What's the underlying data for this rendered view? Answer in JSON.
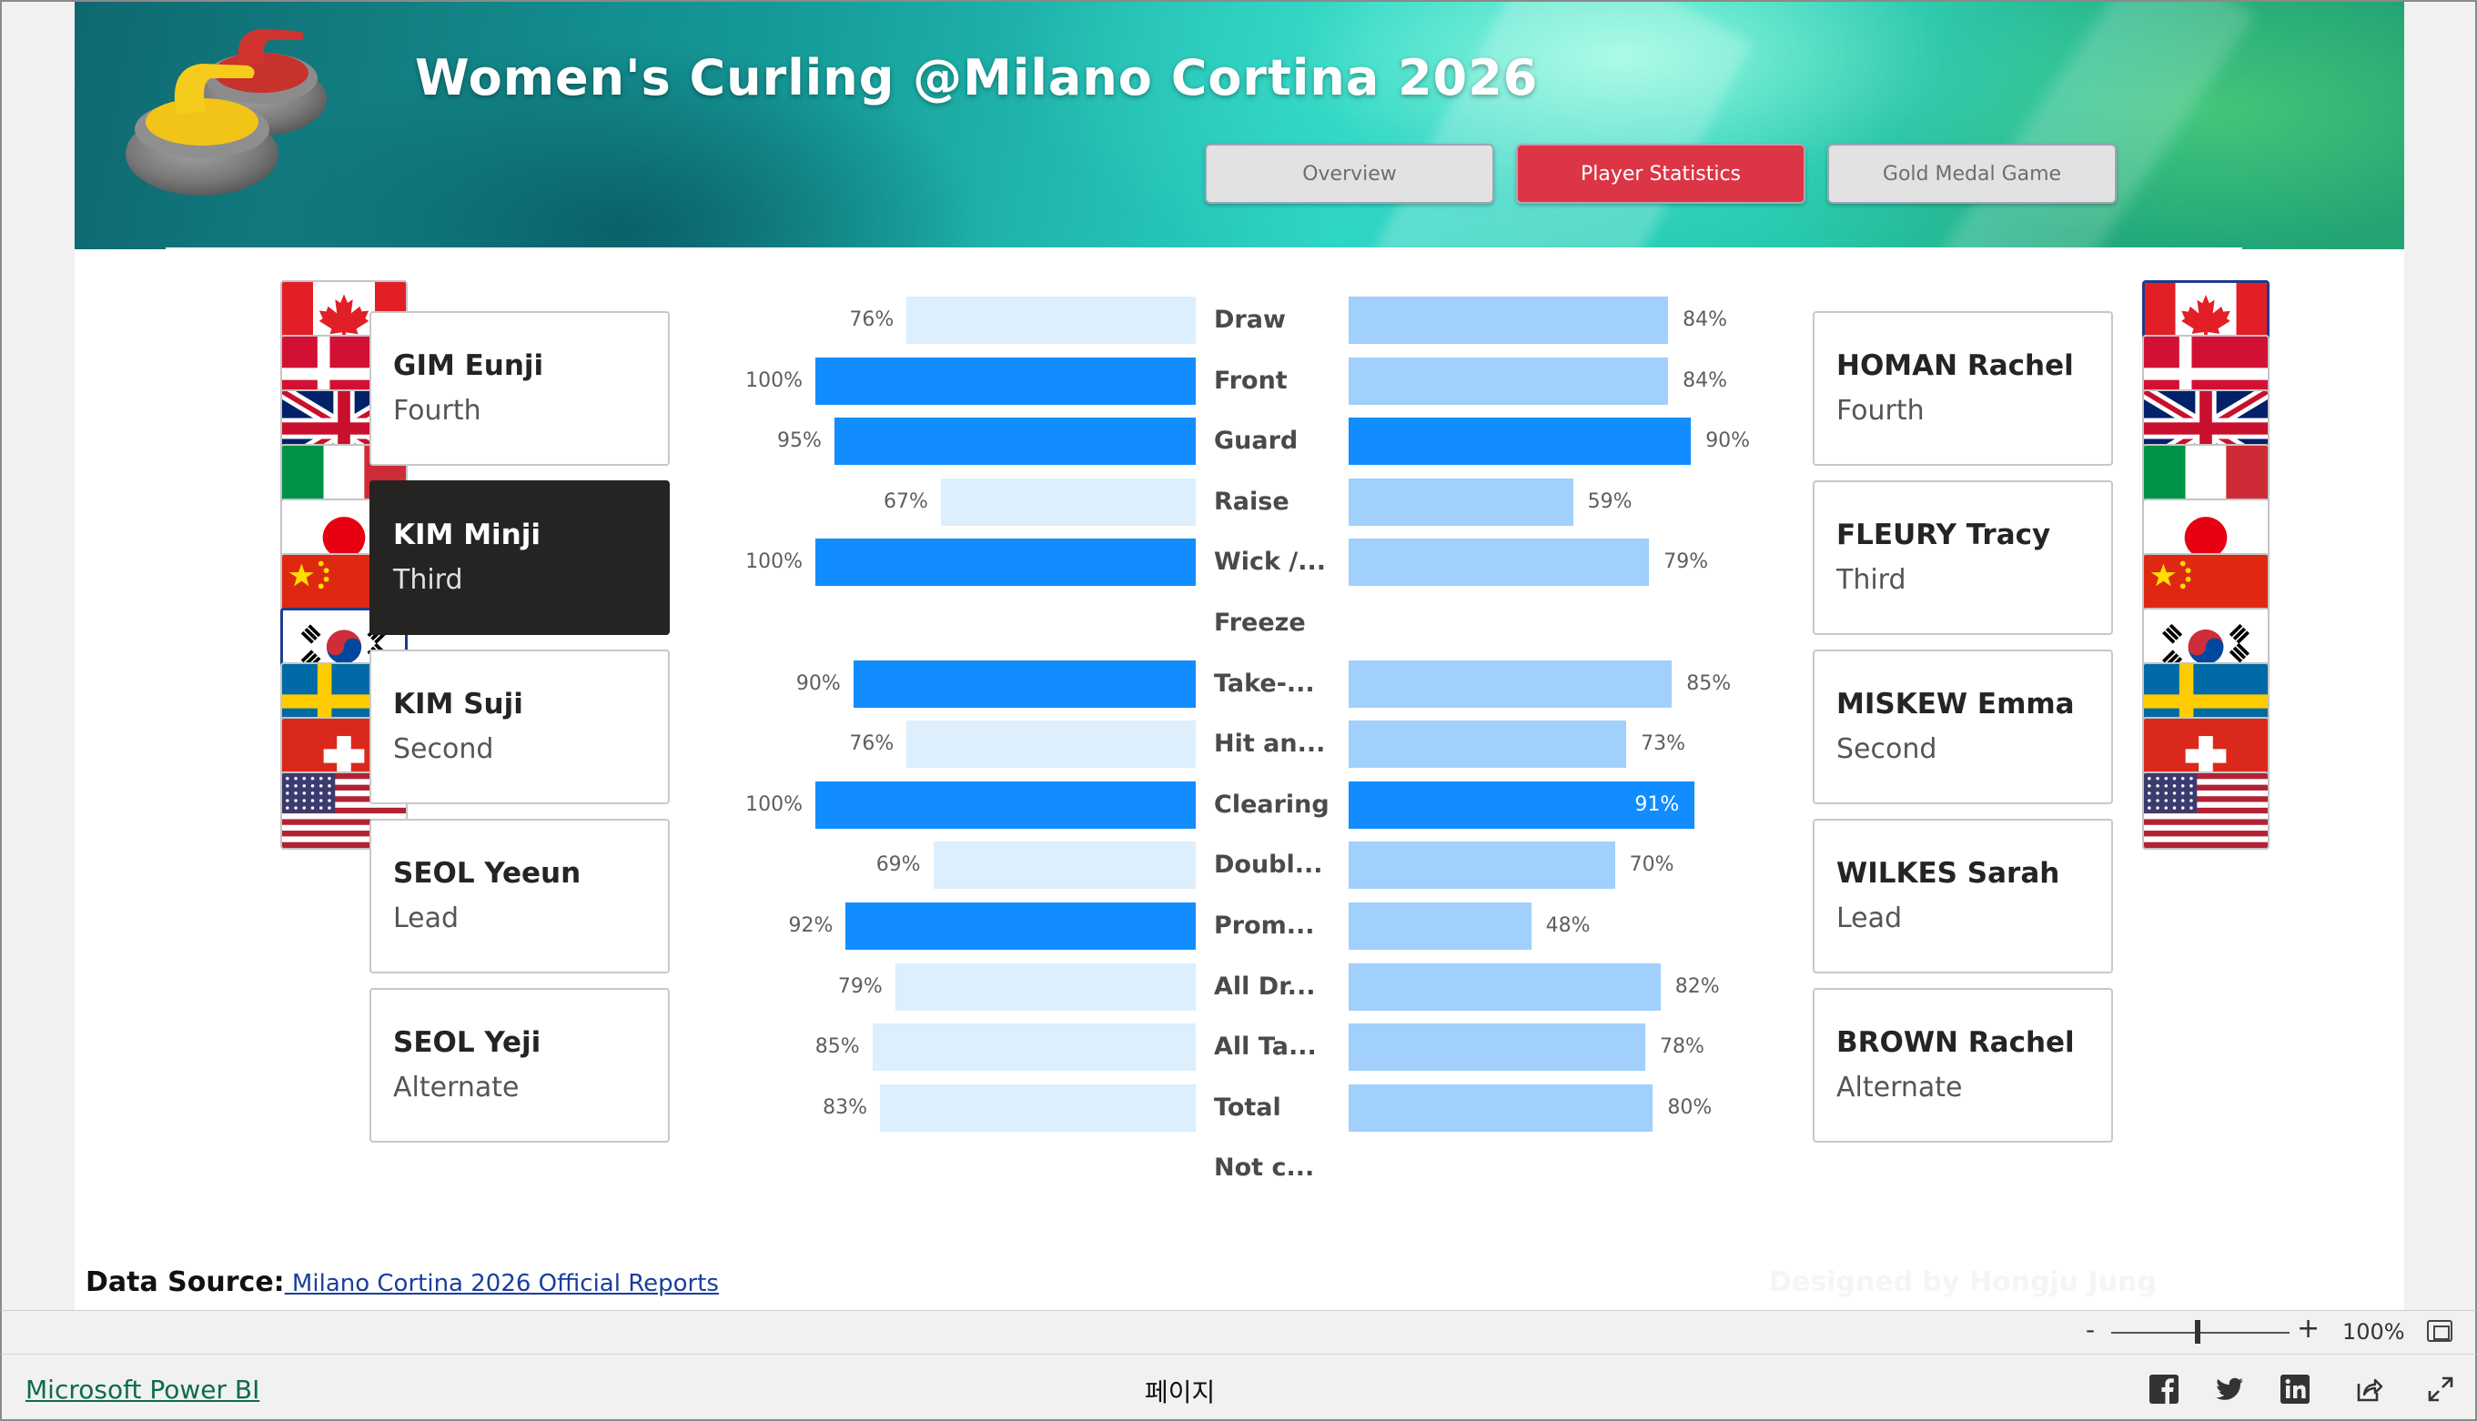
{
  "report": {
    "title": "Women's Curling @Milano Cortina 2026",
    "nav": [
      {
        "label": "Overview",
        "active": false
      },
      {
        "label": "Player Statistics",
        "active": true
      },
      {
        "label": "Gold Medal Game",
        "active": false
      }
    ],
    "data_source_label": "Data Source:",
    "data_source_link": " Milano Cortina 2026 Official Reports",
    "designed_by": "Designed by Hongju Jung"
  },
  "flags": {
    "countries": [
      "canada",
      "denmark",
      "great-britain",
      "italy",
      "japan",
      "china",
      "korea",
      "sweden",
      "switzerland",
      "usa"
    ],
    "left_selected": "korea",
    "right_selected": "canada"
  },
  "left_players": [
    {
      "name": "GIM Eunji",
      "role": "Fourth",
      "selected": false
    },
    {
      "name": "KIM Minji",
      "role": "Third",
      "selected": true
    },
    {
      "name": "KIM Suji",
      "role": "Second",
      "selected": false
    },
    {
      "name": "SEOL Yeeun",
      "role": "Lead",
      "selected": false
    },
    {
      "name": "SEOL Yeji",
      "role": "Alternate",
      "selected": false
    }
  ],
  "right_players": [
    {
      "name": "HOMAN Rachel",
      "role": "Fourth"
    },
    {
      "name": "FLEURY Tracy",
      "role": "Third"
    },
    {
      "name": "MISKEW Emma",
      "role": "Second"
    },
    {
      "name": "WILKES Sarah",
      "role": "Lead"
    },
    {
      "name": "BROWN Rachel",
      "role": "Alternate"
    }
  ],
  "chart_data": {
    "type": "bar",
    "orientation": "horizontal-diverging",
    "categories": [
      "Draw",
      "Front",
      "Guard",
      "Raise",
      "Wick /...",
      "Freeze",
      "Take-...",
      "Hit an...",
      "Clearing",
      "Doubl...",
      "Prom...",
      "All Dr...",
      "All Ta...",
      "Total",
      "Not c..."
    ],
    "series": [
      {
        "side": "left",
        "values": [
          76,
          100,
          95,
          67,
          100,
          null,
          90,
          76,
          100,
          69,
          92,
          79,
          85,
          83,
          null
        ],
        "labels": [
          "76%",
          "100%",
          "95%",
          "67%",
          "100%",
          "",
          "90%",
          "76%",
          "100%",
          "69%",
          "92%",
          "79%",
          "85%",
          "83%",
          ""
        ],
        "highlight": [
          false,
          true,
          true,
          false,
          true,
          false,
          true,
          false,
          true,
          false,
          true,
          false,
          false,
          false,
          false
        ]
      },
      {
        "side": "right",
        "values": [
          84,
          84,
          90,
          59,
          79,
          null,
          85,
          73,
          91,
          70,
          48,
          82,
          78,
          80,
          null
        ],
        "labels": [
          "84%",
          "84%",
          "90%",
          "59%",
          "79%",
          "",
          "85%",
          "73%",
          "91%",
          "70%",
          "48%",
          "82%",
          "78%",
          "80%",
          ""
        ],
        "highlight": [
          false,
          false,
          true,
          false,
          false,
          false,
          false,
          false,
          true,
          false,
          false,
          false,
          false,
          false,
          false
        ]
      }
    ],
    "xlim": [
      0,
      100
    ],
    "colors": {
      "highlight": "#118dff",
      "left_base": "#ddeefd",
      "right_base": "#a0d0fb"
    }
  },
  "toolbar": {
    "zoom_minus": "-",
    "zoom_plus": "+",
    "zoom_level": "100%"
  },
  "footer": {
    "brand_link": "Microsoft Power BI",
    "page_label": "페이지",
    "icons": [
      "facebook-icon",
      "twitter-icon",
      "linkedin-icon",
      "share-icon",
      "expand-icon"
    ]
  }
}
